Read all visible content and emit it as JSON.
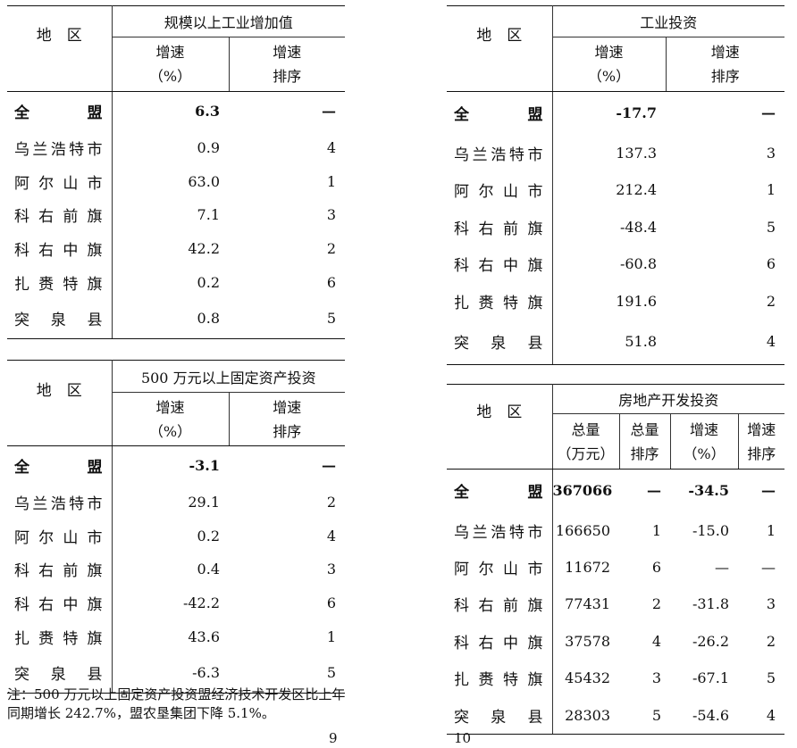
{
  "tables": [
    {
      "title": "规模以上工业增加值",
      "region_header": "地　区",
      "columns": [
        "增速\n（%）",
        "增速\n排序"
      ],
      "rows": [
        {
          "region": "全盟",
          "values": [
            "6.3",
            "—"
          ],
          "bold": true
        },
        {
          "region": "乌兰浩特市",
          "values": [
            "0.9",
            "4"
          ]
        },
        {
          "region": "阿尔山市",
          "values": [
            "63.0",
            "1"
          ]
        },
        {
          "region": "科右前旗",
          "values": [
            "7.1",
            "3"
          ]
        },
        {
          "region": "科右中旗",
          "values": [
            "42.2",
            "2"
          ]
        },
        {
          "region": "扎赉特旗",
          "values": [
            "0.2",
            "6"
          ]
        },
        {
          "region": "突泉县",
          "values": [
            "0.8",
            "5"
          ]
        }
      ]
    },
    {
      "title": "500 万元以上固定资产投资",
      "region_header": "地　区",
      "columns": [
        "增速\n（%）",
        "增速\n排序"
      ],
      "rows": [
        {
          "region": "全盟",
          "values": [
            "-3.1",
            "—"
          ],
          "bold": true
        },
        {
          "region": "乌兰浩特市",
          "values": [
            "29.1",
            "2"
          ]
        },
        {
          "region": "阿尔山市",
          "values": [
            "0.2",
            "4"
          ]
        },
        {
          "region": "科右前旗",
          "values": [
            "0.4",
            "3"
          ]
        },
        {
          "region": "科右中旗",
          "values": [
            "-42.2",
            "6"
          ]
        },
        {
          "region": "扎赉特旗",
          "values": [
            "43.6",
            "1"
          ]
        },
        {
          "region": "突泉县",
          "values": [
            "-6.3",
            "5"
          ]
        }
      ]
    },
    {
      "title": "工业投资",
      "region_header": "地　区",
      "columns": [
        "增速\n（%）",
        "增速\n排序"
      ],
      "rows": [
        {
          "region": "全盟",
          "values": [
            "-17.7",
            "—"
          ],
          "bold": true
        },
        {
          "region": "乌兰浩特市",
          "values": [
            "137.3",
            "3"
          ]
        },
        {
          "region": "阿尔山市",
          "values": [
            "212.4",
            "1"
          ]
        },
        {
          "region": "科右前旗",
          "values": [
            "-48.4",
            "5"
          ]
        },
        {
          "region": "科右中旗",
          "values": [
            "-60.8",
            "6"
          ]
        },
        {
          "region": "扎赉特旗",
          "values": [
            "191.6",
            "2"
          ]
        },
        {
          "region": "突泉县",
          "values": [
            "51.8",
            "4"
          ]
        }
      ]
    },
    {
      "title": "房地产开发投资",
      "region_header": "地　区",
      "columns": [
        "总量\n（万元）",
        "总量\n排序",
        "增速\n（%）",
        "增速\n排序"
      ],
      "rows": [
        {
          "region": "全盟",
          "values": [
            "367066",
            "—",
            "-34.5",
            "—"
          ],
          "bold": true
        },
        {
          "region": "乌兰浩特市",
          "values": [
            "166650",
            "1",
            "-15.0",
            "1"
          ]
        },
        {
          "region": "阿尔山市",
          "values": [
            "11672",
            "6",
            "—",
            "—"
          ]
        },
        {
          "region": "科右前旗",
          "values": [
            "77431",
            "2",
            "-31.8",
            "3"
          ]
        },
        {
          "region": "科右中旗",
          "values": [
            "37578",
            "4",
            "-26.2",
            "2"
          ]
        },
        {
          "region": "扎赉特旗",
          "values": [
            "45432",
            "3",
            "-67.1",
            "5"
          ]
        },
        {
          "region": "突泉县",
          "values": [
            "28303",
            "5",
            "-54.6",
            "4"
          ]
        }
      ]
    }
  ],
  "note": "注：500 万元以上固定资产投资盟经济技术开发区比上年同期增长 242.7%，盟农垦集团下降 5.1%。",
  "page_numbers": {
    "left": "9",
    "right": "10"
  }
}
